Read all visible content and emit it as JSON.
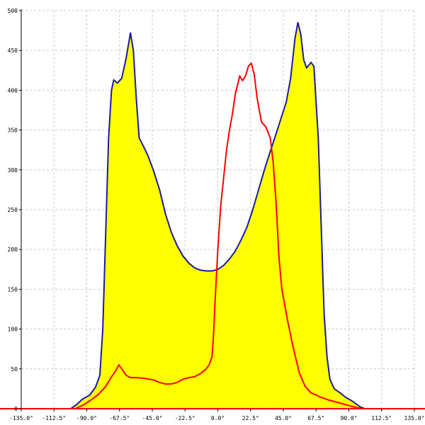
{
  "chart_data": {
    "type": "area",
    "title": "",
    "xlabel": "",
    "ylabel": "",
    "xlim": [
      -135,
      135
    ],
    "ylim": [
      0,
      500
    ],
    "grid": true,
    "legend": "none",
    "x_ticks": [
      -135,
      -112.5,
      -90,
      -67.5,
      -45,
      -22.5,
      0,
      22.5,
      45,
      67.5,
      90,
      112.5,
      135
    ],
    "x_tick_labels": [
      "-135.0°",
      "-112.5°",
      "-90.0°",
      "-67.5°",
      "-45.0°",
      "-22.5°",
      "0.0°",
      "22.5°",
      "45.0°",
      "67.5°",
      "90.0°",
      "112.5°",
      "135.0°"
    ],
    "y_ticks": [
      0,
      50,
      100,
      150,
      200,
      250,
      300,
      350,
      400,
      450,
      500
    ],
    "y_tick_labels": [
      "0",
      "50",
      "100",
      "150",
      "200",
      "250",
      "300",
      "350",
      "400",
      "450",
      "500"
    ],
    "series": [
      {
        "color": "#1a1aa0",
        "fill": "#ffff00",
        "points": [
          [
            -101,
            0
          ],
          [
            -97,
            5
          ],
          [
            -93,
            12
          ],
          [
            -88,
            17
          ],
          [
            -84,
            27
          ],
          [
            -81,
            42
          ],
          [
            -79,
            100
          ],
          [
            -77,
            220
          ],
          [
            -75,
            340
          ],
          [
            -73,
            400
          ],
          [
            -71.5,
            413
          ],
          [
            -69,
            409
          ],
          [
            -66,
            415
          ],
          [
            -63,
            440
          ],
          [
            -60,
            472
          ],
          [
            -58,
            450
          ],
          [
            -56,
            390
          ],
          [
            -54,
            340
          ],
          [
            -52,
            333
          ],
          [
            -48,
            318
          ],
          [
            -44,
            298
          ],
          [
            -40,
            275
          ],
          [
            -36,
            245
          ],
          [
            -32,
            222
          ],
          [
            -28,
            205
          ],
          [
            -24,
            192
          ],
          [
            -20,
            183
          ],
          [
            -16,
            177
          ],
          [
            -12,
            174
          ],
          [
            -8,
            173
          ],
          [
            -4,
            173
          ],
          [
            0,
            175
          ],
          [
            4,
            180
          ],
          [
            8,
            188
          ],
          [
            12,
            198
          ],
          [
            16,
            212
          ],
          [
            20,
            228
          ],
          [
            24,
            250
          ],
          [
            28,
            275
          ],
          [
            32,
            300
          ],
          [
            36,
            323
          ],
          [
            40,
            345
          ],
          [
            44,
            368
          ],
          [
            47,
            385
          ],
          [
            50,
            415
          ],
          [
            53,
            465
          ],
          [
            55,
            485
          ],
          [
            57,
            470
          ],
          [
            59,
            438
          ],
          [
            61,
            428
          ],
          [
            64,
            435
          ],
          [
            66,
            430
          ],
          [
            67,
            400
          ],
          [
            69,
            340
          ],
          [
            71,
            230
          ],
          [
            73,
            120
          ],
          [
            75,
            65
          ],
          [
            77,
            37
          ],
          [
            80,
            25
          ],
          [
            84,
            20
          ],
          [
            88,
            14
          ],
          [
            92,
            10
          ],
          [
            95,
            6
          ],
          [
            98,
            2
          ],
          [
            101,
            0
          ]
        ]
      },
      {
        "color": "#ff0000",
        "points": [
          [
            -98,
            0
          ],
          [
            -92,
            5
          ],
          [
            -87,
            11
          ],
          [
            -82,
            18
          ],
          [
            -77,
            28
          ],
          [
            -73,
            40
          ],
          [
            -70,
            48
          ],
          [
            -68,
            55
          ],
          [
            -66,
            50
          ],
          [
            -63,
            42
          ],
          [
            -60,
            39
          ],
          [
            -56,
            39
          ],
          [
            -50,
            38
          ],
          [
            -44,
            36
          ],
          [
            -40,
            33
          ],
          [
            -36,
            31
          ],
          [
            -32,
            31
          ],
          [
            -28,
            33
          ],
          [
            -24,
            37
          ],
          [
            -20,
            39
          ],
          [
            -16,
            40
          ],
          [
            -12,
            44
          ],
          [
            -8,
            50
          ],
          [
            -6,
            55
          ],
          [
            -4,
            65
          ],
          [
            -3,
            90
          ],
          [
            -2,
            130
          ],
          [
            -1,
            165
          ],
          [
            0,
            200
          ],
          [
            2,
            255
          ],
          [
            4,
            290
          ],
          [
            6,
            325
          ],
          [
            8,
            350
          ],
          [
            10,
            370
          ],
          [
            12,
            395
          ],
          [
            14,
            410
          ],
          [
            15,
            418
          ],
          [
            17,
            412
          ],
          [
            19,
            418
          ],
          [
            21,
            430
          ],
          [
            23,
            434
          ],
          [
            25,
            420
          ],
          [
            27,
            390
          ],
          [
            30,
            360
          ],
          [
            33,
            354
          ],
          [
            36,
            340
          ],
          [
            38,
            310
          ],
          [
            40,
            260
          ],
          [
            42,
            190
          ],
          [
            44,
            150
          ],
          [
            48,
            110
          ],
          [
            52,
            75
          ],
          [
            56,
            45
          ],
          [
            60,
            28
          ],
          [
            64,
            20
          ],
          [
            70,
            15
          ],
          [
            76,
            11
          ],
          [
            82,
            8
          ],
          [
            88,
            5
          ],
          [
            94,
            2
          ],
          [
            99,
            0
          ]
        ]
      }
    ]
  }
}
